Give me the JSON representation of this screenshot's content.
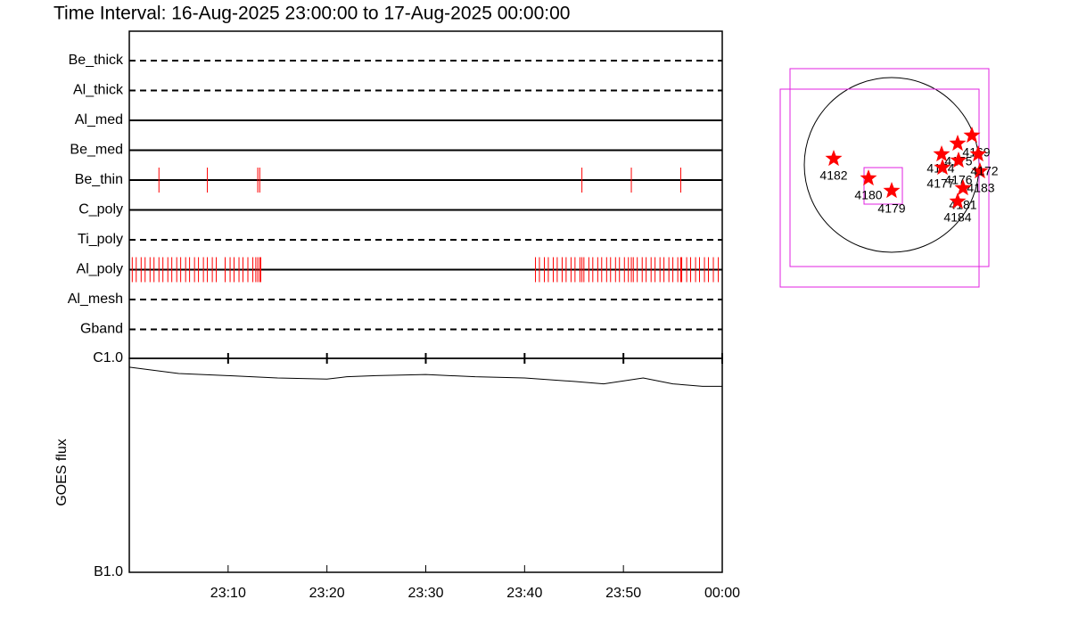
{
  "chart_data": [
    {
      "type": "event",
      "title": "Time Interval: 16-Aug-2025 23:00:00 to 17-Aug-2025 00:00:00",
      "categories": [
        "Be_thick",
        "Al_thick",
        "Al_med",
        "Be_med",
        "Be_thin",
        "C_poly",
        "Ti_poly",
        "Al_poly",
        "Al_mesh",
        "Gband"
      ],
      "line_styles": [
        "dashed",
        "dashed",
        "solid",
        "solid",
        "solid",
        "solid",
        "dashed",
        "solid",
        "dashed",
        "dashed"
      ],
      "events": [
        [],
        [],
        [],
        [],
        [
          3.0,
          7.9,
          13.0,
          13.2,
          45.8,
          50.8,
          55.8
        ],
        [],
        [],
        [
          0.3,
          0.7,
          1.2,
          1.6,
          2.1,
          2.5,
          3.0,
          3.4,
          3.9,
          4.3,
          4.8,
          5.2,
          5.7,
          6.1,
          6.6,
          7.0,
          7.5,
          7.9,
          8.4,
          8.8,
          9.7,
          10.2,
          10.6,
          11.1,
          11.5,
          12.0,
          12.5,
          12.8,
          13.0,
          13.2,
          13.3,
          41.1,
          41.5,
          42.0,
          42.4,
          42.9,
          43.3,
          43.8,
          44.2,
          44.7,
          45.1,
          45.6,
          45.8,
          46.0,
          46.5,
          46.9,
          47.4,
          47.8,
          48.3,
          48.7,
          49.2,
          49.6,
          50.1,
          50.5,
          50.8,
          51.0,
          51.4,
          51.9,
          52.3,
          52.8,
          53.2,
          53.7,
          54.1,
          54.6,
          55.0,
          55.5,
          55.8,
          55.9,
          56.4,
          56.8,
          57.3,
          57.7,
          58.2,
          58.6,
          59.1,
          59.6
        ],
        [],
        []
      ],
      "color": "#ff0000",
      "xlim": [
        0,
        60
      ]
    },
    {
      "type": "line",
      "ylabel": "GOES flux",
      "x": [
        0,
        5,
        10,
        15,
        20,
        22,
        25,
        30,
        35,
        40,
        45,
        48,
        52,
        55,
        58,
        60
      ],
      "values": [
        9.1e-07,
        8.5e-07,
        8.3e-07,
        8.1e-07,
        8e-07,
        8.2e-07,
        8.3e-07,
        8.4e-07,
        8.2e-07,
        8.1e-07,
        7.8e-07,
        7.6e-07,
        8.1e-07,
        7.6e-07,
        7.4e-07,
        7.4e-07
      ],
      "color": "#000000",
      "log_scale": true,
      "xlim": [
        0,
        60
      ],
      "xticks": [
        {
          "value": 10,
          "label": "23:10"
        },
        {
          "value": 20,
          "label": "23:20"
        },
        {
          "value": 30,
          "label": "23:30"
        },
        {
          "value": 40,
          "label": "23:40"
        },
        {
          "value": 50,
          "label": "23:50"
        },
        {
          "value": 60,
          "label": "00:00"
        }
      ],
      "ylim": [
        1e-07,
        1e-06
      ],
      "yticks": [
        {
          "value": 1e-06,
          "label": "C1.0"
        },
        {
          "value": 1e-07,
          "label": "B1.0"
        }
      ]
    },
    {
      "type": "map",
      "color": "#ff0000",
      "labels": [
        "4182",
        "4180",
        "4179",
        "4174",
        "4175",
        "4169",
        "4172",
        "4177",
        "4176",
        "4183",
        "4181",
        "4184"
      ]
    }
  ]
}
